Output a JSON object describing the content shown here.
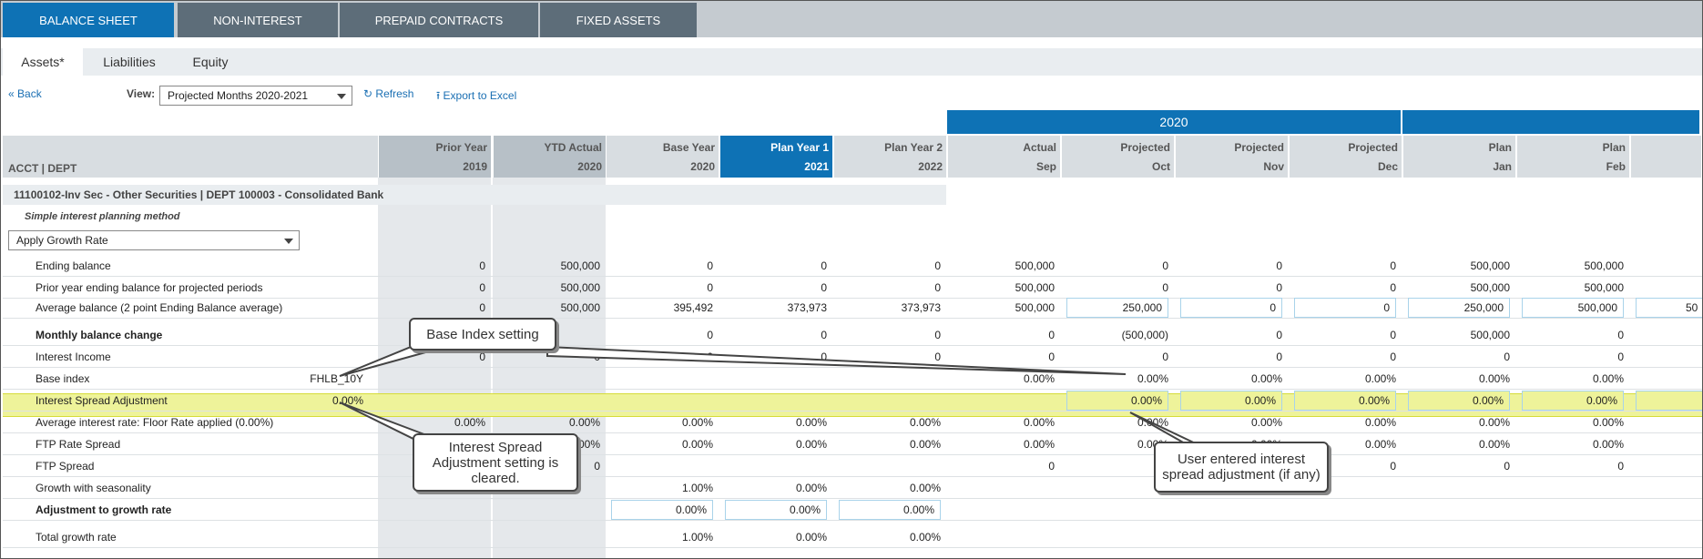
{
  "top_tabs": [
    "BALANCE SHEET",
    "NON-INTEREST",
    "PREPAID CONTRACTS",
    "FIXED ASSETS"
  ],
  "sub_tabs": [
    "Assets*",
    "Liabilities",
    "Equity"
  ],
  "toolbar": {
    "back": "Back",
    "view_label": "View:",
    "view_value": "Projected Months 2020-2021",
    "refresh": "Refresh",
    "export": "Export to Excel"
  },
  "year_group": "2020",
  "acct_header": "ACCT | DEPT",
  "columns": [
    {
      "l1": "Prior Year",
      "l2": "2019"
    },
    {
      "l1": "YTD Actual",
      "l2": "2020"
    },
    {
      "l1": "Base Year",
      "l2": "2020"
    },
    {
      "l1": "Plan Year 1",
      "l2": "2021"
    },
    {
      "l1": "Plan Year 2",
      "l2": "2022"
    },
    {
      "l1": "Actual",
      "l2": "Sep"
    },
    {
      "l1": "Projected",
      "l2": "Oct"
    },
    {
      "l1": "Projected",
      "l2": "Nov"
    },
    {
      "l1": "Projected",
      "l2": "Dec"
    },
    {
      "l1": "Plan",
      "l2": "Jan"
    },
    {
      "l1": "Plan",
      "l2": "Feb"
    }
  ],
  "account": "11100102-Inv Sec - Other Securities | DEPT 100003 - Consolidated Bank",
  "method": "Simple interest planning method",
  "growth_select": "Apply Growth Rate",
  "rows": [
    {
      "label": "Ending balance",
      "vals": [
        "0",
        "500,000",
        "0",
        "0",
        "0",
        "500,000",
        "0",
        "0",
        "0",
        "500,000",
        "500,000"
      ]
    },
    {
      "label": "Prior year ending balance for projected periods",
      "vals": [
        "0",
        "500,000",
        "0",
        "0",
        "0",
        "500,000",
        "0",
        "0",
        "0",
        "500,000",
        "500,000"
      ]
    },
    {
      "label": "Average balance (2 point Ending Balance average)",
      "vals": [
        "0",
        "500,000",
        "395,492",
        "373,973",
        "373,973",
        "500,000",
        "250,000",
        "0",
        "0",
        "250,000",
        "500,000"
      ],
      "partial": "50"
    },
    {
      "label": "Monthly balance change",
      "vals": [
        "",
        "",
        "0",
        "0",
        "0",
        "0",
        "(500,000)",
        "0",
        "0",
        "500,000",
        "0"
      ]
    },
    {
      "label": "Interest Income",
      "vals": [
        "0",
        "0",
        "0",
        "0",
        "0",
        "0",
        "0",
        "0",
        "0",
        "0",
        "0"
      ]
    },
    {
      "label": "Base index",
      "setting": "FHLB_10Y",
      "vals": [
        "",
        "",
        "",
        "",
        "",
        "0.00%",
        "0.00%",
        "0.00%",
        "0.00%",
        "0.00%",
        "0.00%"
      ]
    },
    {
      "label": "Interest Spread Adjustment",
      "setting": "0.00%",
      "vals": [
        "",
        "",
        "",
        "",
        "",
        "",
        "0.00%",
        "0.00%",
        "0.00%",
        "0.00%",
        "0.00%"
      ]
    },
    {
      "label": "Average interest rate: Floor Rate applied (0.00%)",
      "vals": [
        "0.00%",
        "0.00%",
        "0.00%",
        "0.00%",
        "0.00%",
        "0.00%",
        "0.00%",
        "0.00%",
        "0.00%",
        "0.00%",
        "0.00%"
      ]
    },
    {
      "label": "FTP Rate Spread",
      "vals": [
        "",
        "0.00%",
        "0.00%",
        "0.00%",
        "0.00%",
        "0.00%",
        "0.00%",
        "0.00%",
        "0.00%",
        "0.00%",
        "0.00%"
      ]
    },
    {
      "label": "FTP Spread",
      "vals": [
        "",
        "0",
        "",
        "",
        "",
        "0",
        "0",
        "0",
        "0",
        "0",
        "0"
      ]
    },
    {
      "label": "Growth with seasonality",
      "vals": [
        "",
        "",
        "1.00%",
        "0.00%",
        "0.00%",
        "",
        "",
        "",
        "",
        "",
        ""
      ]
    },
    {
      "label": "Adjustment to growth rate",
      "vals": [
        "",
        "",
        "0.00%",
        "0.00%",
        "0.00%",
        "",
        "",
        "",
        "",
        "",
        ""
      ]
    },
    {
      "label": "Total growth rate",
      "vals": [
        "",
        "",
        "1.00%",
        "0.00%",
        "0.00%",
        "",
        "",
        "",
        "",
        "",
        ""
      ]
    }
  ],
  "callouts": {
    "base_index": "Base Index setting",
    "spread_cleared": "Interest Spread Adjustment setting is cleared.",
    "user_entered": "User entered interest spread adjustment (if any)"
  }
}
